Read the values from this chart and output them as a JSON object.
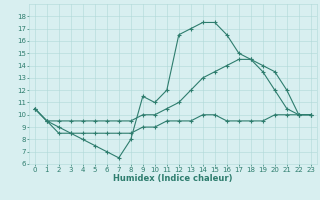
{
  "line1_x": [
    0,
    1,
    2,
    3,
    4,
    5,
    6,
    7,
    8,
    9,
    10,
    11,
    12,
    13,
    14,
    15,
    16,
    17,
    18,
    19,
    20,
    21,
    22,
    23
  ],
  "line1_y": [
    10.5,
    9.5,
    8.5,
    8.5,
    8.0,
    7.5,
    7.0,
    6.5,
    8.0,
    11.5,
    11.0,
    12.0,
    16.5,
    17.0,
    17.5,
    17.5,
    16.5,
    15.0,
    14.5,
    13.5,
    12.0,
    10.5,
    10.0,
    10.0
  ],
  "line2_x": [
    0,
    1,
    2,
    3,
    4,
    5,
    6,
    7,
    8,
    9,
    10,
    11,
    12,
    13,
    14,
    15,
    16,
    17,
    18,
    19,
    20,
    21,
    22,
    23
  ],
  "line2_y": [
    10.5,
    9.5,
    9.5,
    9.5,
    9.5,
    9.5,
    9.5,
    9.5,
    9.5,
    10.0,
    10.0,
    10.5,
    11.0,
    12.0,
    13.0,
    13.5,
    14.0,
    14.5,
    14.5,
    14.0,
    13.5,
    12.0,
    10.0,
    10.0
  ],
  "line3_x": [
    0,
    1,
    2,
    3,
    4,
    5,
    6,
    7,
    8,
    9,
    10,
    11,
    12,
    13,
    14,
    15,
    16,
    17,
    18,
    19,
    20,
    21,
    22,
    23
  ],
  "line3_y": [
    10.5,
    9.5,
    9.0,
    8.5,
    8.5,
    8.5,
    8.5,
    8.5,
    8.5,
    9.0,
    9.0,
    9.5,
    9.5,
    9.5,
    10.0,
    10.0,
    9.5,
    9.5,
    9.5,
    9.5,
    10.0,
    10.0,
    10.0,
    10.0
  ],
  "line_color": "#2e7d6e",
  "bg_color": "#d8eff0",
  "grid_color": "#b0d8d8",
  "xlabel": "Humidex (Indice chaleur)",
  "xlim": [
    -0.5,
    23.5
  ],
  "ylim": [
    6,
    19
  ],
  "xticks": [
    0,
    1,
    2,
    3,
    4,
    5,
    6,
    7,
    8,
    9,
    10,
    11,
    12,
    13,
    14,
    15,
    16,
    17,
    18,
    19,
    20,
    21,
    22,
    23
  ],
  "yticks": [
    6,
    7,
    8,
    9,
    10,
    11,
    12,
    13,
    14,
    15,
    16,
    17,
    18
  ],
  "tick_fontsize": 5,
  "xlabel_fontsize": 6,
  "lw": 0.8,
  "marker_size": 2.5
}
